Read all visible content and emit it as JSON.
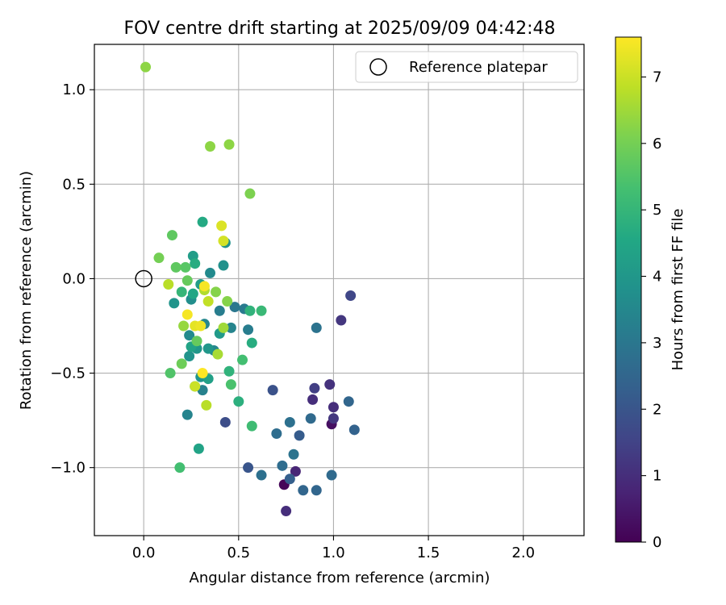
{
  "chart_data": {
    "type": "scatter",
    "title": "FOV centre drift starting at 2025/09/09 04:42:48",
    "xlabel": "Angular distance from reference (arcmin)",
    "ylabel": "Rotation from reference (arcmin)",
    "colorbar_label": "Hours from first FF file",
    "xlim": [
      -0.26,
      2.32
    ],
    "ylim": [
      -1.36,
      1.24
    ],
    "x_ticks": [
      0.0,
      0.5,
      1.0,
      1.5,
      2.0
    ],
    "x_tick_labels": [
      "0.0",
      "0.5",
      "1.0",
      "1.5",
      "2.0"
    ],
    "y_ticks": [
      1.0,
      0.5,
      0.0,
      -0.5,
      -1.0
    ],
    "y_tick_labels": [
      "1.0",
      "0.5",
      "0.0",
      "−0.5",
      "−1.0"
    ],
    "colorbar_range": [
      0,
      7.6
    ],
    "colorbar_ticks": [
      0,
      1,
      2,
      3,
      4,
      5,
      6,
      7
    ],
    "colorbar_tick_labels": [
      "0",
      "1",
      "2",
      "3",
      "4",
      "5",
      "6",
      "7"
    ],
    "colormap": "viridis",
    "grid": true,
    "legend": {
      "placement": "top-right",
      "label": "Reference platepar"
    },
    "reference_point": {
      "x": 0.0,
      "y": 0.0
    },
    "points": [
      {
        "x": 0.74,
        "y": -1.09,
        "h": 0.1
      },
      {
        "x": 0.99,
        "y": -0.77,
        "h": 0.3
      },
      {
        "x": 0.8,
        "y": -1.02,
        "h": 0.8
      },
      {
        "x": 0.75,
        "y": -1.23,
        "h": 1.0
      },
      {
        "x": 0.89,
        "y": -0.64,
        "h": 1.0
      },
      {
        "x": 1.0,
        "y": -0.68,
        "h": 1.0
      },
      {
        "x": 0.98,
        "y": -0.56,
        "h": 1.1
      },
      {
        "x": 1.0,
        "y": -0.74,
        "h": 1.2
      },
      {
        "x": 1.04,
        "y": -0.22,
        "h": 1.2
      },
      {
        "x": 0.9,
        "y": -0.58,
        "h": 1.4
      },
      {
        "x": 1.09,
        "y": -0.09,
        "h": 1.6
      },
      {
        "x": 0.43,
        "y": -0.76,
        "h": 1.8
      },
      {
        "x": 0.68,
        "y": -0.59,
        "h": 1.9
      },
      {
        "x": 0.55,
        "y": -1.0,
        "h": 2.0
      },
      {
        "x": 0.82,
        "y": -0.83,
        "h": 2.2
      },
      {
        "x": 0.77,
        "y": -1.06,
        "h": 2.3
      },
      {
        "x": 1.11,
        "y": -0.8,
        "h": 2.4
      },
      {
        "x": 1.08,
        "y": -0.65,
        "h": 2.5
      },
      {
        "x": 0.84,
        "y": -1.12,
        "h": 2.5
      },
      {
        "x": 0.91,
        "y": -1.12,
        "h": 2.5
      },
      {
        "x": 0.99,
        "y": -1.04,
        "h": 2.6
      },
      {
        "x": 0.88,
        "y": -0.74,
        "h": 2.6
      },
      {
        "x": 0.73,
        "y": -0.99,
        "h": 2.7
      },
      {
        "x": 0.7,
        "y": -0.82,
        "h": 2.7
      },
      {
        "x": 0.77,
        "y": -0.76,
        "h": 2.8
      },
      {
        "x": 0.62,
        "y": -1.04,
        "h": 2.8
      },
      {
        "x": 0.79,
        "y": -0.93,
        "h": 2.9
      },
      {
        "x": 0.91,
        "y": -0.26,
        "h": 2.9
      },
      {
        "x": 0.48,
        "y": -0.15,
        "h": 3.0
      },
      {
        "x": 0.53,
        "y": -0.16,
        "h": 3.1
      },
      {
        "x": 0.55,
        "y": -0.27,
        "h": 3.2
      },
      {
        "x": 0.4,
        "y": -0.17,
        "h": 3.2
      },
      {
        "x": 0.31,
        "y": -0.59,
        "h": 3.3
      },
      {
        "x": 0.23,
        "y": -0.72,
        "h": 3.4
      },
      {
        "x": 0.46,
        "y": -0.26,
        "h": 3.4
      },
      {
        "x": 0.32,
        "y": -0.24,
        "h": 3.5
      },
      {
        "x": 0.37,
        "y": -0.38,
        "h": 3.5
      },
      {
        "x": 0.24,
        "y": -0.3,
        "h": 3.6
      },
      {
        "x": 0.35,
        "y": 0.03,
        "h": 3.6
      },
      {
        "x": 0.25,
        "y": -0.11,
        "h": 3.7
      },
      {
        "x": 0.43,
        "y": 0.19,
        "h": 3.8
      },
      {
        "x": 0.42,
        "y": 0.07,
        "h": 3.8
      },
      {
        "x": 0.16,
        "y": -0.13,
        "h": 3.9
      },
      {
        "x": 0.3,
        "y": -0.52,
        "h": 3.9
      },
      {
        "x": 0.24,
        "y": -0.41,
        "h": 3.9
      },
      {
        "x": 0.34,
        "y": -0.37,
        "h": 4.0
      },
      {
        "x": 0.28,
        "y": -0.37,
        "h": 4.0
      },
      {
        "x": 0.4,
        "y": -0.29,
        "h": 4.1
      },
      {
        "x": 0.26,
        "y": 0.12,
        "h": 4.2
      },
      {
        "x": 0.3,
        "y": -0.03,
        "h": 4.2
      },
      {
        "x": 0.34,
        "y": -0.53,
        "h": 4.3
      },
      {
        "x": 0.27,
        "y": -0.57,
        "h": 4.3
      },
      {
        "x": 0.29,
        "y": -0.9,
        "h": 4.4
      },
      {
        "x": 0.25,
        "y": -0.36,
        "h": 4.4
      },
      {
        "x": 0.26,
        "y": -0.08,
        "h": 4.5
      },
      {
        "x": 0.31,
        "y": 0.3,
        "h": 4.6
      },
      {
        "x": 0.57,
        "y": -0.34,
        "h": 4.7
      },
      {
        "x": 0.27,
        "y": 0.08,
        "h": 4.7
      },
      {
        "x": 0.5,
        "y": -0.65,
        "h": 4.8
      },
      {
        "x": 0.45,
        "y": -0.49,
        "h": 4.9
      },
      {
        "x": 0.56,
        "y": -0.17,
        "h": 4.9
      },
      {
        "x": 0.2,
        "y": -0.07,
        "h": 5.0
      },
      {
        "x": 0.62,
        "y": -0.17,
        "h": 5.1
      },
      {
        "x": 0.57,
        "y": -0.78,
        "h": 5.2
      },
      {
        "x": 0.19,
        "y": -1.0,
        "h": 5.3
      },
      {
        "x": 0.52,
        "y": -0.43,
        "h": 5.3
      },
      {
        "x": 0.46,
        "y": -0.56,
        "h": 5.4
      },
      {
        "x": 0.14,
        "y": -0.5,
        "h": 5.5
      },
      {
        "x": 0.22,
        "y": 0.06,
        "h": 5.6
      },
      {
        "x": 0.17,
        "y": 0.06,
        "h": 5.7
      },
      {
        "x": 0.15,
        "y": 0.23,
        "h": 5.7
      },
      {
        "x": 0.23,
        "y": -0.01,
        "h": 5.8
      },
      {
        "x": 0.28,
        "y": -0.33,
        "h": 5.8
      },
      {
        "x": 0.2,
        "y": -0.45,
        "h": 5.9
      },
      {
        "x": 0.08,
        "y": 0.11,
        "h": 6.0
      },
      {
        "x": 0.56,
        "y": 0.45,
        "h": 6.1
      },
      {
        "x": 0.44,
        "y": -0.12,
        "h": 6.2
      },
      {
        "x": 0.38,
        "y": -0.07,
        "h": 6.2
      },
      {
        "x": 0.45,
        "y": 0.71,
        "h": 6.3
      },
      {
        "x": 0.35,
        "y": 0.7,
        "h": 6.3
      },
      {
        "x": 0.01,
        "y": 1.12,
        "h": 6.3
      },
      {
        "x": 0.21,
        "y": -0.25,
        "h": 6.4
      },
      {
        "x": 0.42,
        "y": -0.26,
        "h": 6.5
      },
      {
        "x": 0.39,
        "y": -0.4,
        "h": 6.6
      },
      {
        "x": 0.32,
        "y": -0.06,
        "h": 6.7
      },
      {
        "x": 0.13,
        "y": -0.03,
        "h": 6.8
      },
      {
        "x": 0.33,
        "y": -0.67,
        "h": 6.8
      },
      {
        "x": 0.34,
        "y": -0.12,
        "h": 6.9
      },
      {
        "x": 0.27,
        "y": -0.57,
        "h": 7.0
      },
      {
        "x": 0.42,
        "y": 0.2,
        "h": 7.1
      },
      {
        "x": 0.41,
        "y": 0.28,
        "h": 7.2
      },
      {
        "x": 0.27,
        "y": -0.25,
        "h": 7.3
      },
      {
        "x": 0.3,
        "y": -0.25,
        "h": 7.4
      },
      {
        "x": 0.23,
        "y": -0.19,
        "h": 7.5
      },
      {
        "x": 0.32,
        "y": -0.04,
        "h": 7.5
      },
      {
        "x": 0.31,
        "y": -0.5,
        "h": 7.6
      }
    ]
  }
}
